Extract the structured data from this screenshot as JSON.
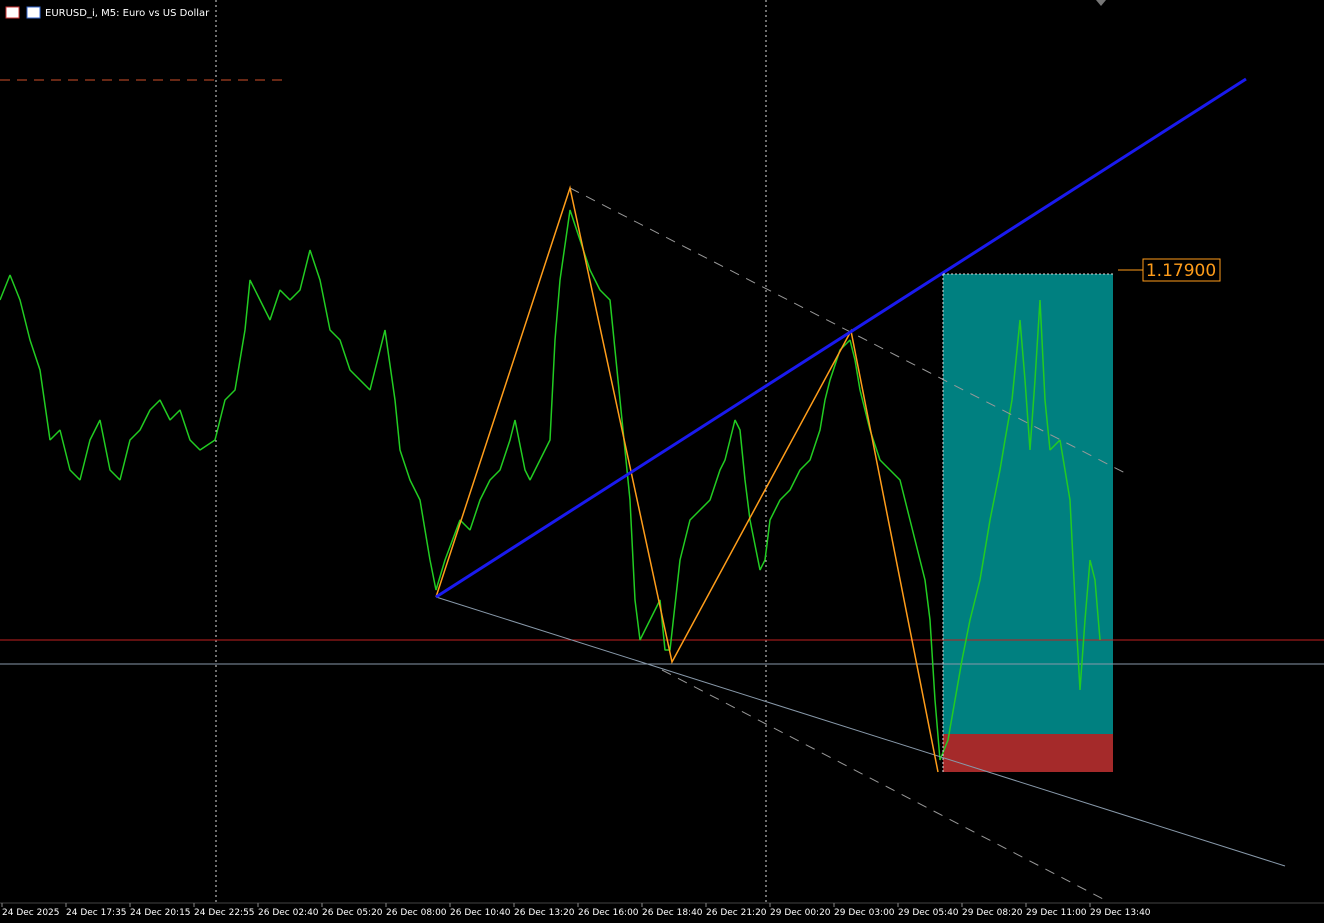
{
  "header": {
    "title": "EURUSD_i, M5:  Euro vs US Dollar"
  },
  "price_label": "1.17900",
  "time_axis": [
    "24 Dec 2025",
    "24 Dec 17:35",
    "24 Dec 20:15",
    "24 Dec 22:55",
    "26 Dec 02:40",
    "26 Dec 05:20",
    "26 Dec 08:00",
    "26 Dec 10:40",
    "26 Dec 13:20",
    "26 Dec 16:00",
    "26 Dec 18:40",
    "26 Dec 21:20",
    "29 Dec 00:20",
    "29 Dec 03:00",
    "29 Dec 05:40",
    "29 Dec 08:20",
    "29 Dec 11:00",
    "29 Dec 13:40"
  ]
}
